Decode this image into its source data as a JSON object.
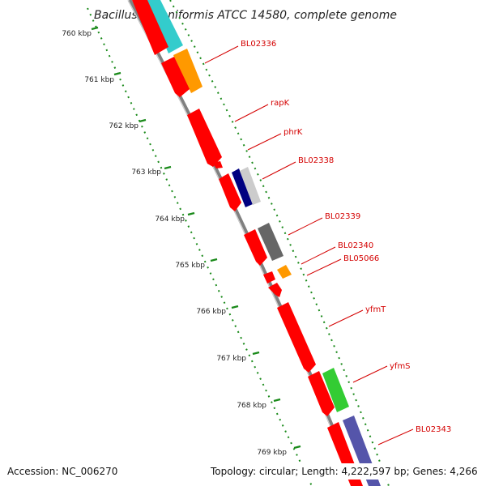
{
  "title": "Bacillus licheniformis ATCC 14580, complete genome",
  "ticks": [
    "760 kbp",
    "761 kbp",
    "762 kbp",
    "763 kbp",
    "764 kbp",
    "765 kbp",
    "766 kbp",
    "767 kbp",
    "768 kbp",
    "769 kbp"
  ],
  "genes": [
    "BL02336",
    "rapK",
    "phrK",
    "BL02338",
    "BL02339",
    "BL02340",
    "BL05066",
    "yfmT",
    "yfmS",
    "BL02343"
  ],
  "accession": "Accession: NC_006270",
  "topology": "Topology: circular; Length: 4,222,597 bp; Genes: 4,266",
  "colors": {
    "cds": "#ff0000",
    "tick_line": "#1a8a1a",
    "backbone": "#808080",
    "label": "#d40000",
    "cyan": "#33cccc",
    "orange": "#ff9900",
    "navy": "#000080",
    "light_gray": "#cccccc",
    "dark_gray": "#666666",
    "green": "#33cc33",
    "purple": "#5555aa"
  }
}
